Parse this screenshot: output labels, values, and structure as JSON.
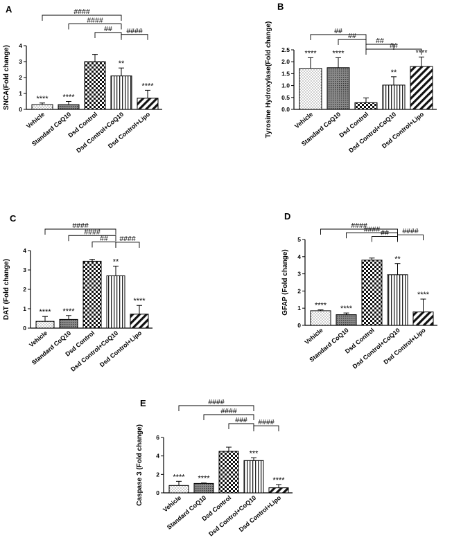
{
  "chart_data": [
    {
      "type": "bar",
      "panel": "A",
      "ylabel": "SNCA(Fold change)",
      "ylim": [
        0,
        4
      ],
      "yticks": [
        0,
        1,
        2,
        3,
        4
      ],
      "yticklabels": [
        "0",
        "1",
        "2",
        "3",
        "4"
      ],
      "categories": [
        "Vehicle",
        "Standard CoQ10",
        "Dsd Control",
        "Dsd Control+CoQ10",
        "Dsd Control+Lipo"
      ],
      "values": [
        0.3,
        0.3,
        3.0,
        2.1,
        0.7
      ],
      "errors": [
        0.1,
        0.2,
        0.45,
        0.5,
        0.5
      ],
      "patterns": [
        "dots",
        "grid",
        "checker",
        "vlines",
        "diag"
      ],
      "bar_labels": [
        "****",
        "****",
        "",
        "**",
        "****"
      ],
      "brackets": [
        {
          "from": 0,
          "to": 3,
          "label": "####"
        },
        {
          "from": 1,
          "to": 3,
          "label": "####"
        },
        {
          "from": 2,
          "to": 3,
          "label": "##"
        },
        {
          "from": 3,
          "to": 4,
          "label": "####"
        }
      ]
    },
    {
      "type": "bar",
      "panel": "B",
      "ylabel": "Tyrosine Hydroxylase(Fold change)",
      "ylim": [
        0,
        2.5
      ],
      "yticks": [
        0,
        0.5,
        1,
        1.5,
        2,
        2.5
      ],
      "yticklabels": [
        "0.0",
        "0.5",
        "1.0",
        "1.5",
        "2.0",
        "2.5"
      ],
      "categories": [
        "Vehicle",
        "Standard CoQ10",
        "Dsd Control",
        "Dsd Control+CoQ10",
        "Dsd Control+Lipo"
      ],
      "values": [
        1.72,
        1.75,
        0.28,
        1.02,
        1.8
      ],
      "errors": [
        0.45,
        0.42,
        0.2,
        0.35,
        0.4
      ],
      "patterns": [
        "dots",
        "grid",
        "checker",
        "vlines",
        "diag"
      ],
      "bar_labels": [
        "****",
        "****",
        "",
        "**",
        "****"
      ],
      "brackets": [
        {
          "from": 0,
          "to": 2,
          "label": "##"
        },
        {
          "from": 1,
          "to": 2,
          "label": "##"
        },
        {
          "from": 2,
          "to": 3,
          "label": "##"
        },
        {
          "from": 2,
          "to": 4,
          "label": "##"
        }
      ]
    },
    {
      "type": "bar",
      "panel": "C",
      "ylabel": "DAT (Fold change)",
      "ylim": [
        0,
        4
      ],
      "yticks": [
        0,
        1,
        2,
        3,
        4
      ],
      "yticklabels": [
        "0",
        "1",
        "2",
        "3",
        "4"
      ],
      "categories": [
        "Vehicle",
        "Standard CoQ10",
        "Dsd Control",
        "Dsd Control+CoQ10",
        "Dsd Control+Lipo"
      ],
      "values": [
        0.35,
        0.45,
        3.45,
        2.7,
        0.72
      ],
      "errors": [
        0.25,
        0.2,
        0.1,
        0.5,
        0.45
      ],
      "patterns": [
        "dots",
        "grid",
        "checker",
        "vlines",
        "diag"
      ],
      "bar_labels": [
        "****",
        "****",
        "",
        "**",
        "****"
      ],
      "brackets": [
        {
          "from": 0,
          "to": 3,
          "label": "####"
        },
        {
          "from": 1,
          "to": 3,
          "label": "####"
        },
        {
          "from": 2,
          "to": 3,
          "label": "##"
        },
        {
          "from": 3,
          "to": 4,
          "label": "####"
        }
      ]
    },
    {
      "type": "bar",
      "panel": "D",
      "ylabel": "GFAP (Fold change)",
      "ylim": [
        0,
        5
      ],
      "yticks": [
        0,
        1,
        2,
        3,
        4,
        5
      ],
      "yticklabels": [
        "0",
        "1",
        "2",
        "3",
        "4",
        "5"
      ],
      "categories": [
        "Vehicle",
        "Standard CoQ10",
        "Dsd Control",
        "Dsd Control+CoQ10",
        "Dsd Control+Lipo"
      ],
      "values": [
        0.85,
        0.62,
        3.8,
        2.95,
        0.78
      ],
      "errors": [
        0.05,
        0.1,
        0.12,
        0.65,
        0.75
      ],
      "patterns": [
        "dots",
        "grid",
        "checker",
        "vlines",
        "diag"
      ],
      "bar_labels": [
        "****",
        "****",
        "",
        "**",
        "****"
      ],
      "brackets": [
        {
          "from": 0,
          "to": 3,
          "label": "####"
        },
        {
          "from": 1,
          "to": 3,
          "label": "####"
        },
        {
          "from": 2,
          "to": 3,
          "label": "##"
        },
        {
          "from": 3,
          "to": 4,
          "label": "####"
        }
      ]
    },
    {
      "type": "bar",
      "panel": "E",
      "ylabel": "Caspase 3 (Fold change)",
      "ylim": [
        0,
        6
      ],
      "yticks": [
        0,
        2,
        4,
        6
      ],
      "yticklabels": [
        "0",
        "2",
        "4",
        "6"
      ],
      "categories": [
        "Vehicle",
        "Standard CoQ10",
        "Dsd Control",
        "Dsd Control+CoQ10",
        "Dsd Control+Lipo"
      ],
      "values": [
        0.8,
        1.02,
        4.5,
        3.5,
        0.55
      ],
      "errors": [
        0.45,
        0.05,
        0.45,
        0.3,
        0.35
      ],
      "patterns": [
        "dots",
        "grid",
        "checker",
        "vlines",
        "diag"
      ],
      "bar_labels": [
        "****",
        "****",
        "",
        "***",
        "****"
      ],
      "brackets": [
        {
          "from": 0,
          "to": 3,
          "label": "####"
        },
        {
          "from": 1,
          "to": 3,
          "label": "####"
        },
        {
          "from": 2,
          "to": 3,
          "label": "###"
        },
        {
          "from": 3,
          "to": 4,
          "label": "####"
        }
      ]
    }
  ]
}
